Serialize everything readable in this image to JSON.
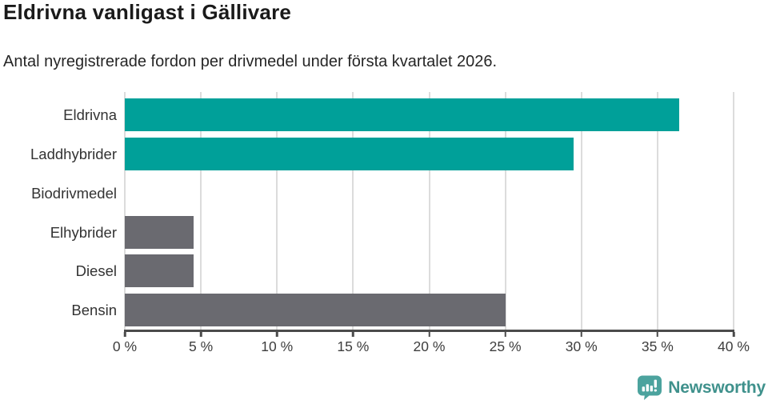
{
  "chart_data": {
    "type": "bar",
    "orientation": "horizontal",
    "title": "Eldrivna vanligast i Gällivare",
    "subtitle": "Antal nyregistrerade fordon per drivmedel under första kvartalet 2026.",
    "categories": [
      "Eldrivna",
      "Laddhybrider",
      "Biodrivmedel",
      "Elhybrider",
      "Diesel",
      "Bensin"
    ],
    "values": [
      36.4,
      29.5,
      0,
      4.5,
      4.5,
      25
    ],
    "unit": "%",
    "xlabel": "",
    "ylabel": "",
    "xlim": [
      0,
      40
    ],
    "x_ticks": [
      0,
      5,
      10,
      15,
      20,
      25,
      30,
      35,
      40
    ],
    "x_tick_labels": [
      "0 %",
      "5 %",
      "10 %",
      "15 %",
      "20 %",
      "25 %",
      "30 %",
      "35 %",
      "40 %"
    ],
    "grid": "vertical-on",
    "legend": "none",
    "bar_colors": [
      "#00a099",
      "#00a099",
      "#6a6a70",
      "#6a6a70",
      "#6a6a70",
      "#6a6a70"
    ],
    "colors": {
      "highlight": "#00a099",
      "muted": "#6a6a70",
      "gridline": "#dcdcdc",
      "axis": "#4b4b4b"
    }
  },
  "footer": {
    "logo_text": "Newsworthy",
    "logo_icon": "newsworthy-speech-bubble-barchart-icon",
    "logo_text_color": "#3f918c",
    "logo_icon_color": "#4ca39e"
  }
}
